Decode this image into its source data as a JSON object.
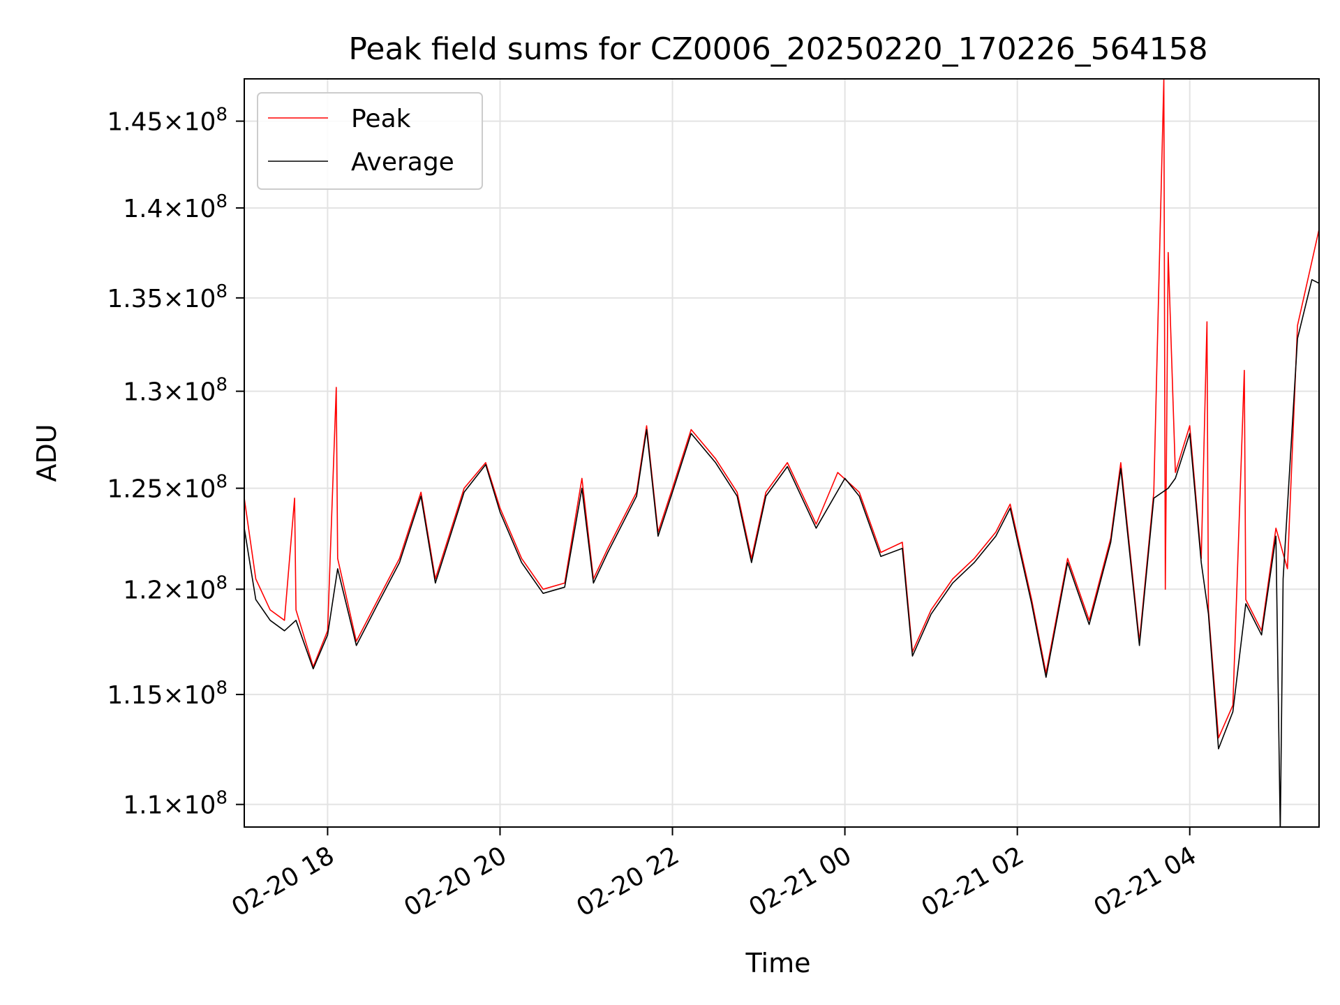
{
  "chart_data": {
    "type": "line",
    "title": "Peak field sums for CZ0006_20250220_170226_564158",
    "xlabel": "Time",
    "ylabel": "ADU",
    "scale": {
      "x": "time",
      "y": "log"
    },
    "xlim": [
      "2025-02-20 17:02",
      "2025-02-21 05:30"
    ],
    "ylim": [
      109000000,
      147500000
    ],
    "grid": true,
    "legend_position": "top-left",
    "x_ticks": [
      {
        "label": "02-20 18",
        "time": "2025-02-20 18:00"
      },
      {
        "label": "02-20 20",
        "time": "2025-02-20 20:00"
      },
      {
        "label": "02-20 22",
        "time": "2025-02-20 22:00"
      },
      {
        "label": "02-21 00",
        "time": "2025-02-21 00:00"
      },
      {
        "label": "02-21 02",
        "time": "2025-02-21 02:00"
      },
      {
        "label": "02-21 04",
        "time": "2025-02-21 04:00"
      }
    ],
    "y_ticks": [
      {
        "mantissa": "1.1",
        "value": 110000000
      },
      {
        "mantissa": "1.15",
        "value": 115000000
      },
      {
        "mantissa": "1.2",
        "value": 120000000
      },
      {
        "mantissa": "1.25",
        "value": 125000000
      },
      {
        "mantissa": "1.3",
        "value": 130000000
      },
      {
        "mantissa": "1.35",
        "value": 135000000
      },
      {
        "mantissa": "1.4",
        "value": 140000000
      },
      {
        "mantissa": "1.45",
        "value": 145000000
      }
    ],
    "y_tick_times": "×",
    "y_tick_base": "10",
    "y_tick_exp": "8",
    "series": [
      {
        "name": "Peak",
        "color": "#ff0000",
        "points": [
          [
            "2025-02-20 17:02",
            124500000
          ],
          [
            "2025-02-20 17:10",
            120500000
          ],
          [
            "2025-02-20 17:20",
            119000000
          ],
          [
            "2025-02-20 17:30",
            118500000
          ],
          [
            "2025-02-20 17:37",
            124500000
          ],
          [
            "2025-02-20 17:38",
            119000000
          ],
          [
            "2025-02-20 17:50",
            116300000
          ],
          [
            "2025-02-20 18:00",
            118000000
          ],
          [
            "2025-02-20 18:06",
            130200000
          ],
          [
            "2025-02-20 18:07",
            121500000
          ],
          [
            "2025-02-20 18:20",
            117500000
          ],
          [
            "2025-02-20 18:35",
            119500000
          ],
          [
            "2025-02-20 18:50",
            121500000
          ],
          [
            "2025-02-20 19:05",
            124800000
          ],
          [
            "2025-02-20 19:15",
            120500000
          ],
          [
            "2025-02-20 19:35",
            125000000
          ],
          [
            "2025-02-20 19:50",
            126300000
          ],
          [
            "2025-02-20 20:00",
            124000000
          ],
          [
            "2025-02-20 20:15",
            121500000
          ],
          [
            "2025-02-20 20:30",
            120000000
          ],
          [
            "2025-02-20 20:45",
            120300000
          ],
          [
            "2025-02-20 20:57",
            125500000
          ],
          [
            "2025-02-20 21:05",
            120500000
          ],
          [
            "2025-02-20 21:15",
            122000000
          ],
          [
            "2025-02-20 21:35",
            124800000
          ],
          [
            "2025-02-20 21:42",
            128200000
          ],
          [
            "2025-02-20 21:50",
            122800000
          ],
          [
            "2025-02-20 22:00",
            125000000
          ],
          [
            "2025-02-20 22:13",
            128000000
          ],
          [
            "2025-02-20 22:30",
            126500000
          ],
          [
            "2025-02-20 22:45",
            124800000
          ],
          [
            "2025-02-20 22:55",
            121500000
          ],
          [
            "2025-02-20 23:05",
            124800000
          ],
          [
            "2025-02-20 23:20",
            126300000
          ],
          [
            "2025-02-20 23:40",
            123200000
          ],
          [
            "2025-02-20 23:55",
            125800000
          ],
          [
            "2025-02-21 00:10",
            124800000
          ],
          [
            "2025-02-21 00:25",
            121800000
          ],
          [
            "2025-02-21 00:40",
            122300000
          ],
          [
            "2025-02-21 00:47",
            117000000
          ],
          [
            "2025-02-21 01:00",
            119000000
          ],
          [
            "2025-02-21 01:15",
            120500000
          ],
          [
            "2025-02-21 01:30",
            121500000
          ],
          [
            "2025-02-21 01:45",
            122800000
          ],
          [
            "2025-02-21 01:55",
            124200000
          ],
          [
            "2025-02-21 02:10",
            119500000
          ],
          [
            "2025-02-21 02:20",
            116000000
          ],
          [
            "2025-02-21 02:35",
            121500000
          ],
          [
            "2025-02-21 02:50",
            118500000
          ],
          [
            "2025-02-21 03:05",
            122500000
          ],
          [
            "2025-02-21 03:12",
            126300000
          ],
          [
            "2025-02-21 03:25",
            117500000
          ],
          [
            "2025-02-21 03:35",
            124800000
          ],
          [
            "2025-02-21 03:42",
            147500000
          ],
          [
            "2025-02-21 03:43",
            120000000
          ],
          [
            "2025-02-21 03:45",
            137500000
          ],
          [
            "2025-02-21 03:50",
            125800000
          ],
          [
            "2025-02-21 04:00",
            128200000
          ],
          [
            "2025-02-21 04:08",
            121500000
          ],
          [
            "2025-02-21 04:12",
            133700000
          ],
          [
            "2025-02-21 04:13",
            119000000
          ],
          [
            "2025-02-21 04:20",
            113000000
          ],
          [
            "2025-02-21 04:30",
            114500000
          ],
          [
            "2025-02-21 04:38",
            131100000
          ],
          [
            "2025-02-21 04:39",
            119500000
          ],
          [
            "2025-02-21 04:50",
            118000000
          ],
          [
            "2025-02-21 05:00",
            123000000
          ],
          [
            "2025-02-21 05:08",
            121000000
          ],
          [
            "2025-02-21 05:15",
            133500000
          ],
          [
            "2025-02-21 05:25",
            137000000
          ],
          [
            "2025-02-21 05:30",
            138800000
          ]
        ]
      },
      {
        "name": "Average",
        "color": "#000000",
        "points": [
          [
            "2025-02-20 17:02",
            123000000
          ],
          [
            "2025-02-20 17:10",
            119500000
          ],
          [
            "2025-02-20 17:20",
            118500000
          ],
          [
            "2025-02-20 17:30",
            118000000
          ],
          [
            "2025-02-20 17:38",
            118500000
          ],
          [
            "2025-02-20 17:50",
            116200000
          ],
          [
            "2025-02-20 18:00",
            117800000
          ],
          [
            "2025-02-20 18:07",
            121000000
          ],
          [
            "2025-02-20 18:20",
            117300000
          ],
          [
            "2025-02-20 18:35",
            119300000
          ],
          [
            "2025-02-20 18:50",
            121300000
          ],
          [
            "2025-02-20 19:05",
            124600000
          ],
          [
            "2025-02-20 19:15",
            120300000
          ],
          [
            "2025-02-20 19:35",
            124800000
          ],
          [
            "2025-02-20 19:50",
            126200000
          ],
          [
            "2025-02-20 20:00",
            123800000
          ],
          [
            "2025-02-20 20:15",
            121300000
          ],
          [
            "2025-02-20 20:30",
            119800000
          ],
          [
            "2025-02-20 20:45",
            120100000
          ],
          [
            "2025-02-20 20:57",
            125000000
          ],
          [
            "2025-02-20 21:05",
            120300000
          ],
          [
            "2025-02-20 21:15",
            121800000
          ],
          [
            "2025-02-20 21:35",
            124600000
          ],
          [
            "2025-02-20 21:42",
            128000000
          ],
          [
            "2025-02-20 21:50",
            122600000
          ],
          [
            "2025-02-20 22:00",
            124800000
          ],
          [
            "2025-02-20 22:13",
            127800000
          ],
          [
            "2025-02-20 22:30",
            126300000
          ],
          [
            "2025-02-20 22:45",
            124600000
          ],
          [
            "2025-02-20 22:55",
            121300000
          ],
          [
            "2025-02-20 23:05",
            124600000
          ],
          [
            "2025-02-20 23:20",
            126100000
          ],
          [
            "2025-02-20 23:40",
            123000000
          ],
          [
            "2025-02-21 00:00",
            125500000
          ],
          [
            "2025-02-21 00:10",
            124600000
          ],
          [
            "2025-02-21 00:25",
            121600000
          ],
          [
            "2025-02-21 00:40",
            122000000
          ],
          [
            "2025-02-21 00:47",
            116800000
          ],
          [
            "2025-02-21 01:00",
            118800000
          ],
          [
            "2025-02-21 01:15",
            120300000
          ],
          [
            "2025-02-21 01:30",
            121300000
          ],
          [
            "2025-02-21 01:45",
            122600000
          ],
          [
            "2025-02-21 01:55",
            124000000
          ],
          [
            "2025-02-21 02:10",
            119300000
          ],
          [
            "2025-02-21 02:20",
            115800000
          ],
          [
            "2025-02-21 02:35",
            121300000
          ],
          [
            "2025-02-21 02:50",
            118300000
          ],
          [
            "2025-02-21 03:05",
            122300000
          ],
          [
            "2025-02-21 03:12",
            126000000
          ],
          [
            "2025-02-21 03:25",
            117300000
          ],
          [
            "2025-02-21 03:35",
            124500000
          ],
          [
            "2025-02-21 03:45",
            125000000
          ],
          [
            "2025-02-21 03:50",
            125500000
          ],
          [
            "2025-02-21 04:00",
            127800000
          ],
          [
            "2025-02-21 04:08",
            121300000
          ],
          [
            "2025-02-21 04:13",
            118800000
          ],
          [
            "2025-02-21 04:20",
            112500000
          ],
          [
            "2025-02-21 04:30",
            114200000
          ],
          [
            "2025-02-21 04:39",
            119300000
          ],
          [
            "2025-02-21 04:50",
            117800000
          ],
          [
            "2025-02-21 05:00",
            122600000
          ],
          [
            "2025-02-21 05:03",
            108800000
          ],
          [
            "2025-02-21 05:05",
            120500000
          ],
          [
            "2025-02-21 05:15",
            132800000
          ],
          [
            "2025-02-21 05:25",
            136000000
          ],
          [
            "2025-02-21 05:30",
            135800000
          ]
        ]
      }
    ]
  }
}
